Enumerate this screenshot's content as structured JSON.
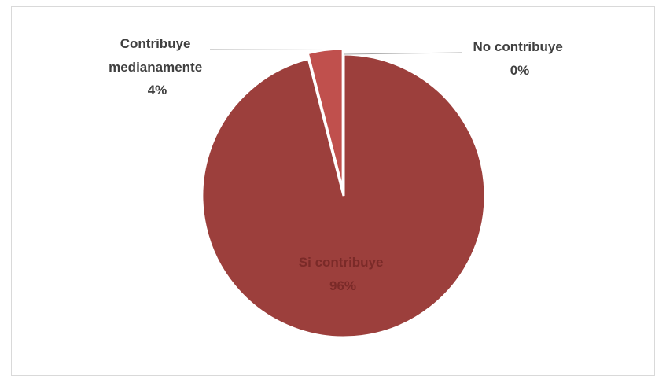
{
  "chart_data": {
    "type": "pie",
    "title": "",
    "slices": [
      {
        "label_lines": [
          "No contribuye"
        ],
        "percent_label": "0%",
        "value": 0,
        "color": "#c0504d"
      },
      {
        "label_lines": [
          "Contribuye",
          "medianamente"
        ],
        "percent_label": "4%",
        "value": 4,
        "color": "#c0504d"
      },
      {
        "label_lines": [
          "Si contribuye"
        ],
        "percent_label": "96%",
        "value": 96,
        "color": "#9c3f3c"
      }
    ],
    "label_colors": {
      "outside": "#404040",
      "inside": "#7a2a28"
    },
    "leader_line_color": "#a6a6a6",
    "legend": "none"
  }
}
